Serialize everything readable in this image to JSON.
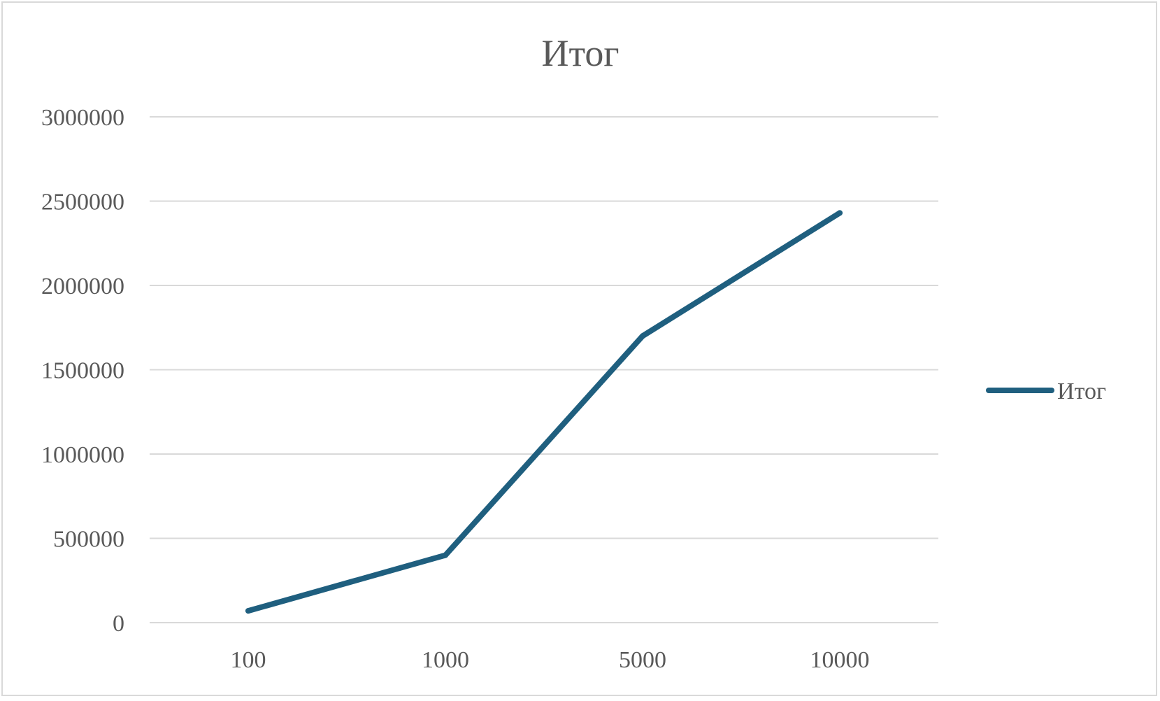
{
  "chart_data": {
    "type": "line",
    "title": "Итог",
    "xlabel": "",
    "ylabel": "",
    "categories": [
      "100",
      "1000",
      "5000",
      "10000"
    ],
    "series": [
      {
        "name": "Итог",
        "values": [
          70000,
          400000,
          1700000,
          2430000
        ]
      }
    ],
    "ylim": [
      0,
      3000000
    ],
    "yticks": [
      "0",
      "500000",
      "1000000",
      "1500000",
      "2000000",
      "2500000",
      "3000000"
    ],
    "grid": true,
    "legend": "right",
    "colors": {
      "line": "#1f5f7f",
      "grid": "#d9d9d9",
      "text": "#595959",
      "title": "#595959"
    }
  }
}
